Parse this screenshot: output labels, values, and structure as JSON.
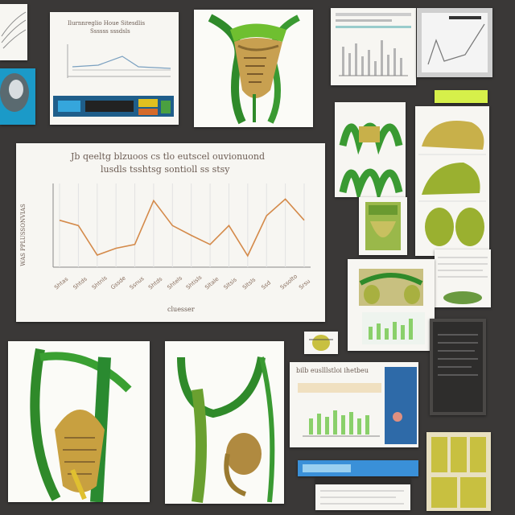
{
  "main_chart": {
    "title_line1": "Jb qeeltg blzuoos cs tlo eutscel ouvionuond",
    "title_line2": "lusdls tsshtsg sontioll ss stsy",
    "xlabel": "cluesser",
    "ylabel": "WAS PPLUSSONVIAS",
    "x_ticks": [
      "Shtas",
      "Shtds",
      "Shtnls",
      "Gssde",
      "Ssnus",
      "Shtds",
      "Shtels",
      "Shtisls",
      "Sltale",
      "Sltsis",
      "Sltsls",
      "Ssd",
      "Sssolto",
      "Srsu"
    ],
    "line_color": "#d48a4a"
  },
  "small_chart": {
    "title_line1": "Ilurnnreglio Houe Sitesdlis",
    "title_line2": "Ssssss sssdsls"
  },
  "right_doc": {
    "header": "bilb euslllstloi ihetbeu"
  },
  "colors": {
    "background": "#3a3837",
    "paper": "#f7f6f2",
    "leaf_green": "#2f8a2a",
    "plant_yellow": "#c8b04a",
    "accent_orange": "#d48a4a"
  }
}
